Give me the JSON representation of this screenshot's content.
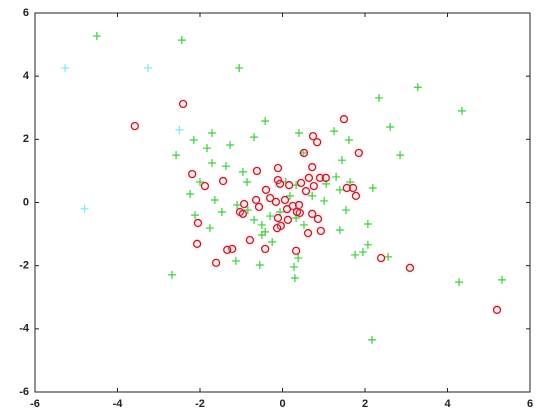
{
  "chart_data": {
    "type": "scatter",
    "xlim": [
      -6,
      6
    ],
    "ylim": [
      -6,
      6
    ],
    "xticks": [
      -6,
      -4,
      -2,
      0,
      2,
      4,
      6
    ],
    "yticks": [
      -6,
      -4,
      -2,
      0,
      2,
      4,
      6
    ],
    "series": [
      {
        "marker": "plus",
        "color": "#3ccf3c",
        "x": [
          -4.5,
          -2.44,
          -1.05,
          2.34,
          3.28,
          4.35,
          2.61,
          -0.42,
          0.4,
          -2.58,
          -2.15,
          -1.71,
          -1.83,
          -1.27,
          -0.69,
          1.25,
          1.61,
          0.5,
          1.44,
          2.85,
          -1.37,
          -1.71,
          -0.96,
          -0.86,
          -2.0,
          -2.24,
          -1.64,
          -2.12,
          -1.76,
          -1.47,
          -1.1,
          -0.84,
          -0.69,
          -0.5,
          -0.5,
          -0.25,
          -0.42,
          -0.55,
          -1.13,
          -0.3,
          -0.06,
          0.33,
          0.52,
          0.38,
          0.28,
          0.3,
          0.18,
          0.33,
          0.72,
          1.01,
          0.08,
          1.06,
          1.64,
          1.39,
          1.54,
          1.39,
          2.07,
          2.19,
          2.07,
          1.76,
          1.95,
          2.56,
          2.17,
          4.28,
          5.32,
          -2.68,
          1.3
        ],
        "values": [
          5.27,
          5.14,
          4.26,
          3.31,
          3.65,
          2.9,
          2.39,
          2.58,
          2.2,
          1.5,
          1.98,
          2.2,
          1.72,
          1.82,
          2.07,
          2.26,
          1.98,
          1.57,
          1.34,
          1.5,
          1.15,
          1.25,
          0.97,
          0.65,
          0.65,
          0.27,
          0.08,
          -0.4,
          -0.81,
          -0.3,
          -0.08,
          -0.24,
          -0.55,
          -0.71,
          -1.03,
          -1.25,
          -0.93,
          -1.98,
          -1.85,
          -0.43,
          -0.3,
          -0.49,
          -0.71,
          -1.76,
          -2.04,
          -2.39,
          0.21,
          0.55,
          0.21,
          0.05,
          0.65,
          0.59,
          0.65,
          0.4,
          -0.24,
          -0.87,
          -0.68,
          0.46,
          -1.34,
          -1.66,
          -1.57,
          -1.72,
          -4.35,
          -2.52,
          -2.45,
          -2.29,
          0.81
        ]
      },
      {
        "marker": "circle",
        "color": "#b02020",
        "x": [
          -2.41,
          -3.58,
          1.49,
          0.74,
          0.84,
          0.52,
          1.85,
          0.72,
          -0.62,
          -0.11,
          -2.19,
          -1.44,
          -1.88,
          -0.11,
          0.16,
          -0.4,
          -0.3,
          -0.16,
          0.06,
          -0.64,
          -0.57,
          -0.93,
          -1.03,
          0.45,
          0.57,
          0.76,
          0.91,
          1.05,
          0.64,
          0.25,
          0.4,
          0.42,
          0.35,
          0.11,
          0.13,
          -0.04,
          -0.13,
          0.72,
          0.86,
          0.93,
          0.62,
          0.33,
          -0.96,
          -0.79,
          -1.22,
          -1.34,
          -2.05,
          -2.07,
          -1.61,
          -0.42,
          -0.11,
          1.56,
          1.71,
          2.39,
          3.09,
          5.2,
          -0.06,
          1.78
        ],
        "values": [
          3.12,
          2.42,
          2.64,
          2.1,
          1.91,
          1.57,
          1.57,
          1.12,
          1.0,
          1.09,
          0.9,
          0.68,
          0.52,
          0.71,
          0.55,
          0.4,
          0.14,
          0.02,
          0.08,
          0.08,
          -0.14,
          -0.05,
          -0.3,
          0.62,
          0.36,
          0.52,
          0.78,
          0.78,
          0.78,
          -0.11,
          -0.08,
          -0.33,
          -0.3,
          -0.21,
          -0.55,
          -0.74,
          -0.81,
          -0.36,
          -0.52,
          -0.9,
          -0.97,
          -1.53,
          -0.36,
          -1.19,
          -1.47,
          -1.5,
          -0.65,
          -1.31,
          -1.91,
          -1.47,
          -0.49,
          0.46,
          0.46,
          -1.76,
          -2.07,
          -3.4,
          0.59,
          0.21
        ]
      },
      {
        "marker": "plus",
        "color": "#7fe8f0",
        "x": [
          -5.27,
          -3.26,
          -2.5,
          -4.8
        ],
        "values": [
          4.26,
          4.26,
          2.3,
          -0.2
        ]
      }
    ]
  }
}
